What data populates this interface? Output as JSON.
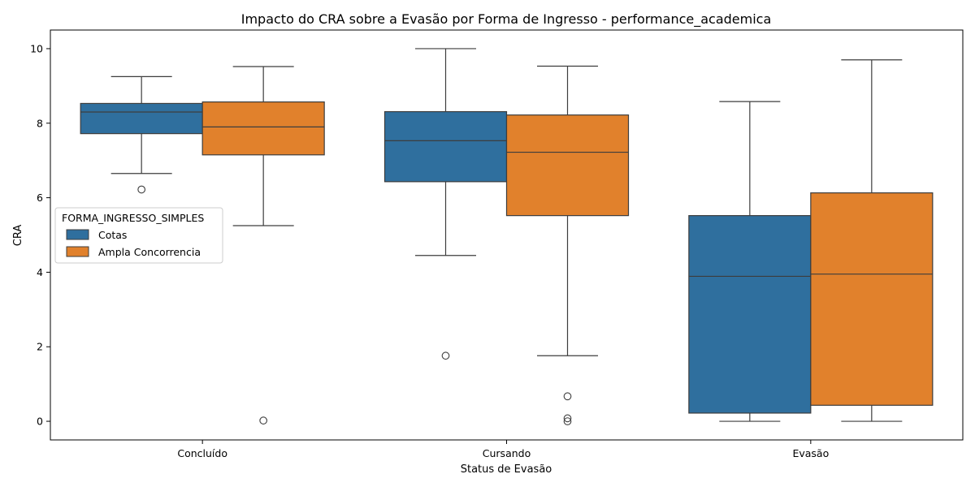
{
  "chart_data": {
    "type": "box",
    "title": "Impacto do CRA sobre a Evasão por Forma de Ingresso - performance_academica",
    "xlabel": "Status de Evasão",
    "ylabel": "CRA",
    "categories": [
      "Concluído",
      "Cursando",
      "Evasão"
    ],
    "ylim": [
      -0.5,
      10.5
    ],
    "yticks": [
      0,
      2,
      4,
      6,
      8,
      10
    ],
    "grid": false,
    "legend": {
      "title": "FORMA_INGRESSO_SIMPLES",
      "placement": "center-left"
    },
    "series": [
      {
        "name": "Cotas",
        "color": "#2f6f9e",
        "boxes": [
          {
            "whisker_low": 6.65,
            "q1": 7.72,
            "median": 8.3,
            "q3": 8.53,
            "whisker_high": 9.25,
            "outliers": [
              6.22
            ]
          },
          {
            "whisker_low": 4.45,
            "q1": 6.43,
            "median": 7.53,
            "q3": 8.31,
            "whisker_high": 10.0,
            "outliers": [
              1.76
            ]
          },
          {
            "whisker_low": 0.0,
            "q1": 0.22,
            "median": 3.89,
            "q3": 5.52,
            "whisker_high": 8.58,
            "outliers": []
          }
        ]
      },
      {
        "name": "Ampla Concorrencia",
        "color": "#e1812c",
        "boxes": [
          {
            "whisker_low": 5.25,
            "q1": 7.15,
            "median": 7.9,
            "q3": 8.57,
            "whisker_high": 9.52,
            "outliers": [
              0.02
            ]
          },
          {
            "whisker_low": 1.76,
            "q1": 5.52,
            "median": 7.22,
            "q3": 8.22,
            "whisker_high": 9.53,
            "outliers": [
              0.67,
              0.08,
              0.0
            ]
          },
          {
            "whisker_low": 0.0,
            "q1": 0.43,
            "median": 3.95,
            "q3": 6.13,
            "whisker_high": 9.7,
            "outliers": []
          }
        ]
      }
    ]
  }
}
